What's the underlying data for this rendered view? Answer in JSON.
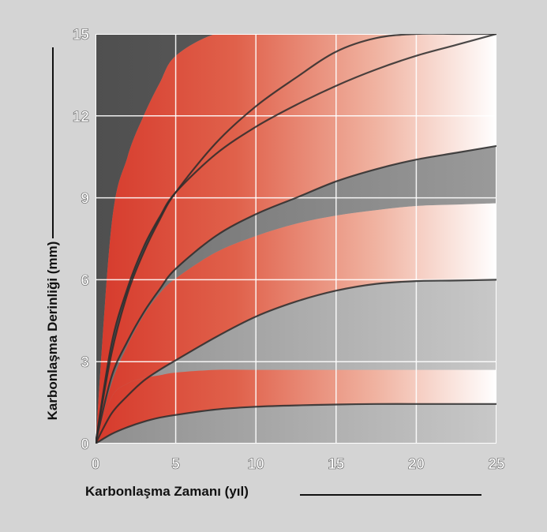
{
  "chart_data": {
    "type": "area",
    "title": "",
    "xlabel": "Karbonlaşma Zamanı (yıl)",
    "ylabel": "Karbonlaşma Derinliği (mm)",
    "xlim": [
      0,
      25
    ],
    "ylim": [
      0,
      15
    ],
    "x_ticks": [
      0,
      5,
      10,
      15,
      20,
      25
    ],
    "y_ticks": [
      0,
      3,
      6,
      9,
      12,
      15
    ],
    "grid": true,
    "legend": "none",
    "x": [
      0,
      1,
      2,
      3,
      4,
      5,
      7.5,
      10,
      12.5,
      15,
      17.5,
      20,
      22.5,
      25
    ],
    "series": [
      {
        "values": [
          0,
          1.7,
          2.2,
          2.4,
          2.5,
          2.6,
          2.7,
          2.7,
          2.7,
          2.7,
          2.7,
          2.7,
          2.7,
          2.7
        ]
      },
      {
        "values": [
          0,
          0.35,
          0.6,
          0.8,
          0.95,
          1.05,
          1.25,
          1.35,
          1.4,
          1.43,
          1.45,
          1.45,
          1.45,
          1.45
        ]
      },
      {
        "values": [
          0,
          1.1,
          1.75,
          2.3,
          2.7,
          3.05,
          3.9,
          4.65,
          5.2,
          5.6,
          5.85,
          5.95,
          5.97,
          6.0
        ]
      },
      {
        "values": [
          0,
          2.2,
          3.6,
          4.7,
          5.5,
          6.05,
          7.0,
          7.6,
          8.05,
          8.35,
          8.55,
          8.7,
          8.75,
          8.8
        ]
      },
      {
        "values": [
          0,
          2.45,
          3.75,
          4.8,
          5.65,
          6.4,
          7.6,
          8.4,
          9.0,
          9.6,
          10.05,
          10.4,
          10.65,
          10.9
        ]
      },
      {
        "values": [
          0,
          3.3,
          5.5,
          7.0,
          8.2,
          9.2,
          11.0,
          12.35,
          13.4,
          14.35,
          14.85,
          15.0,
          15.0,
          15.0
        ]
      },
      {
        "values": [
          0,
          3.65,
          5.7,
          7.2,
          8.3,
          9.2,
          10.6,
          11.6,
          12.4,
          13.1,
          13.7,
          14.2,
          14.6,
          15.0
        ]
      },
      {
        "values": [
          0,
          8.0,
          10.5,
          12.0,
          13.2,
          14.2,
          15.0,
          15.0,
          15.0,
          15.0,
          15.0,
          15.0,
          15.0,
          15.0
        ]
      }
    ],
    "colors": {
      "dark_band": "#595959",
      "mid_band": "#858585",
      "light_band": "#b8b8b8",
      "red_strong": "#d63a2c",
      "red_fade": "#ffffff",
      "grid": "#ffffff",
      "curve_edge": "#2b2b2b"
    }
  }
}
